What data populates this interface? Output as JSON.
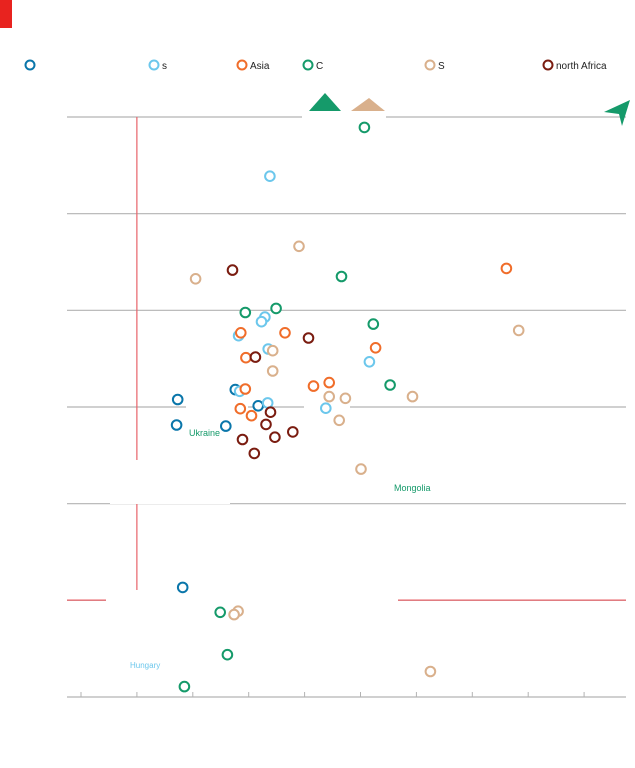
{
  "colors": {
    "red_accent": "#e8231f",
    "refline": "#e8636a",
    "grid": "#b3b3b3",
    "white": "#ffffff"
  },
  "icons": {
    "brand_block": "red-square",
    "arrow_up": "triangle-up-icon",
    "arrow_corner": "arrow-up-right-icon"
  },
  "legend": {
    "items": [
      {
        "label": "",
        "color": "#0a76aa"
      },
      {
        "label": "s",
        "color": "#6cc7ec"
      },
      {
        "label": "Asia",
        "color": "#f06d2a"
      },
      {
        "label": "C",
        "color": "#159a6a"
      },
      {
        "label": "S",
        "color": "#d9b08c"
      },
      {
        "label": "north Africa",
        "color": "#7a1c10"
      }
    ]
  },
  "annotations": {
    "ukraine": "Ukraine",
    "mongolia": "Mongolia",
    "hungary": "Hungary"
  },
  "chart_data": {
    "type": "scatter",
    "title": "",
    "xlabel": "",
    "ylabel": "",
    "xlim": [
      0,
      100
    ],
    "ylim": [
      0,
      100
    ],
    "grid": true,
    "legend_position": "top",
    "reference_lines": [
      {
        "axis": "x",
        "value": 12.5
      },
      {
        "axis": "y",
        "value": 16.7
      }
    ],
    "series": [
      {
        "name": "",
        "color": "#0a76aa",
        "points": [
          {
            "x": 20.7,
            "y": 18.9
          },
          {
            "x": 19.6,
            "y": 46.9
          },
          {
            "x": 28.4,
            "y": 46.7
          },
          {
            "x": 34.2,
            "y": 50.2
          },
          {
            "x": 30.1,
            "y": 53.0
          },
          {
            "x": 19.8,
            "y": 51.3
          }
        ]
      },
      {
        "name": "s",
        "color": "#6cc7ec",
        "points": [
          {
            "x": 36.3,
            "y": 89.8
          },
          {
            "x": 35.4,
            "y": 65.5
          },
          {
            "x": 36.0,
            "y": 60.0
          },
          {
            "x": 35.9,
            "y": 50.7
          },
          {
            "x": 46.3,
            "y": 49.8
          },
          {
            "x": 54.1,
            "y": 57.8
          },
          {
            "x": 30.9,
            "y": 52.7
          },
          {
            "x": 30.7,
            "y": 62.3
          },
          {
            "x": 34.8,
            "y": 64.7
          }
        ]
      },
      {
        "name": "Asia",
        "color": "#f06d2a",
        "points": [
          {
            "x": 78.6,
            "y": 73.9
          },
          {
            "x": 31.1,
            "y": 62.8
          },
          {
            "x": 39.0,
            "y": 62.8
          },
          {
            "x": 32.0,
            "y": 58.5
          },
          {
            "x": 31.9,
            "y": 53.1
          },
          {
            "x": 31.0,
            "y": 49.7
          },
          {
            "x": 33.0,
            "y": 48.5
          },
          {
            "x": 44.1,
            "y": 53.6
          },
          {
            "x": 55.2,
            "y": 60.2
          },
          {
            "x": 46.9,
            "y": 54.2
          }
        ]
      },
      {
        "name": "C",
        "color": "#159a6a",
        "points": [
          {
            "x": 53.2,
            "y": 98.2
          },
          {
            "x": 49.1,
            "y": 72.5
          },
          {
            "x": 54.8,
            "y": 64.3
          },
          {
            "x": 37.4,
            "y": 67.0
          },
          {
            "x": 31.9,
            "y": 66.3
          },
          {
            "x": 57.8,
            "y": 53.8
          },
          {
            "x": 28.7,
            "y": 7.3
          },
          {
            "x": 27.4,
            "y": 14.6
          },
          {
            "x": 21.0,
            "y": 1.8
          }
        ]
      },
      {
        "name": "S",
        "color": "#d9b08c",
        "points": [
          {
            "x": 23.0,
            "y": 72.1
          },
          {
            "x": 80.8,
            "y": 63.2
          },
          {
            "x": 41.5,
            "y": 77.7
          },
          {
            "x": 36.8,
            "y": 59.7
          },
          {
            "x": 36.8,
            "y": 56.2
          },
          {
            "x": 48.7,
            "y": 47.7
          },
          {
            "x": 52.6,
            "y": 39.3
          },
          {
            "x": 30.6,
            "y": 14.8
          },
          {
            "x": 29.9,
            "y": 14.2
          },
          {
            "x": 61.8,
            "y": 51.8
          },
          {
            "x": 49.8,
            "y": 51.5
          },
          {
            "x": 46.9,
            "y": 51.8
          },
          {
            "x": 65.0,
            "y": 4.4
          }
        ]
      },
      {
        "name": "north Africa",
        "color": "#7a1c10",
        "points": [
          {
            "x": 29.6,
            "y": 73.6
          },
          {
            "x": 33.7,
            "y": 58.6
          },
          {
            "x": 43.2,
            "y": 61.9
          },
          {
            "x": 36.4,
            "y": 49.1
          },
          {
            "x": 35.6,
            "y": 47.0
          },
          {
            "x": 37.2,
            "y": 44.8
          },
          {
            "x": 33.5,
            "y": 42.0
          },
          {
            "x": 31.4,
            "y": 44.4
          },
          {
            "x": 40.4,
            "y": 45.7
          }
        ]
      }
    ]
  }
}
